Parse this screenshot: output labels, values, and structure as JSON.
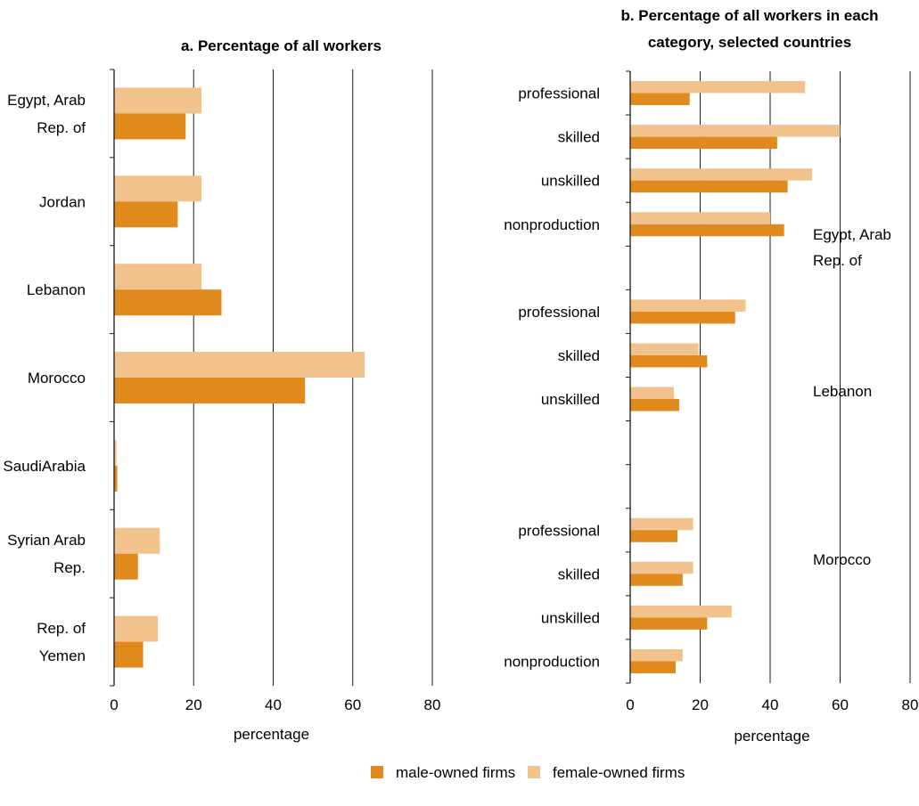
{
  "colors": {
    "male": "#E08A1E",
    "female": "#F2C28C",
    "axis": "#1a1a1a"
  },
  "legend": {
    "male_label": "male-owned firms",
    "female_label": "female-owned firms"
  },
  "chart_data": [
    {
      "panel": "a",
      "type": "bar",
      "orientation": "horizontal",
      "title": "a. Percentage of all workers",
      "xlabel": "percentage",
      "xlim": [
        0,
        80
      ],
      "xticks": [
        0,
        20,
        40,
        60,
        80
      ],
      "grid": true,
      "categories": [
        [
          "Egypt, Arab",
          "Rep. of"
        ],
        [
          "Jordan"
        ],
        [
          "Lebanon"
        ],
        [
          "Morocco"
        ],
        [
          "SaudiArabia"
        ],
        [
          "Syrian Arab",
          "Rep."
        ],
        [
          "Rep. of",
          "Yemen"
        ]
      ],
      "series": [
        {
          "name": "female-owned firms",
          "values": [
            22,
            22,
            22,
            63,
            0.6,
            11.5,
            11
          ]
        },
        {
          "name": "male-owned firms",
          "values": [
            18,
            16,
            27,
            48,
            0.8,
            6,
            7.3
          ]
        }
      ]
    },
    {
      "panel": "b",
      "type": "bar",
      "orientation": "horizontal",
      "title": "b. Percentage of all workers in each category, selected countries",
      "title_lines": [
        "b. Percentage of all workers in each",
        "category, selected countries"
      ],
      "xlabel": "percentage",
      "xlim": [
        0,
        80
      ],
      "xticks": [
        0,
        20,
        40,
        60,
        80
      ],
      "grid": true,
      "slots": 14,
      "groups": [
        {
          "country": [
            "Egypt, Arab",
            "Rep. of"
          ],
          "rows": [
            {
              "category": "professional",
              "female": 50,
              "male": 17
            },
            {
              "category": "skilled",
              "female": 60,
              "male": 42
            },
            {
              "category": "unskilled",
              "female": 52,
              "male": 45
            },
            {
              "category": "nonproduction",
              "female": 40,
              "male": 44
            }
          ]
        },
        {
          "country": [
            "Lebanon"
          ],
          "rows": [
            {
              "category": "professional",
              "female": 33,
              "male": 30
            },
            {
              "category": "skilled",
              "female": 19.5,
              "male": 22
            },
            {
              "category": "unskilled",
              "female": 12.5,
              "male": 14
            }
          ]
        },
        {
          "country": [
            "Morocco"
          ],
          "rows": [
            {
              "category": "professional",
              "female": 18,
              "male": 13.5
            },
            {
              "category": "skilled",
              "female": 18,
              "male": 15
            },
            {
              "category": "unskilled",
              "female": 29,
              "male": 22
            },
            {
              "category": "nonproduction",
              "female": 15,
              "male": 13
            }
          ]
        }
      ]
    }
  ]
}
